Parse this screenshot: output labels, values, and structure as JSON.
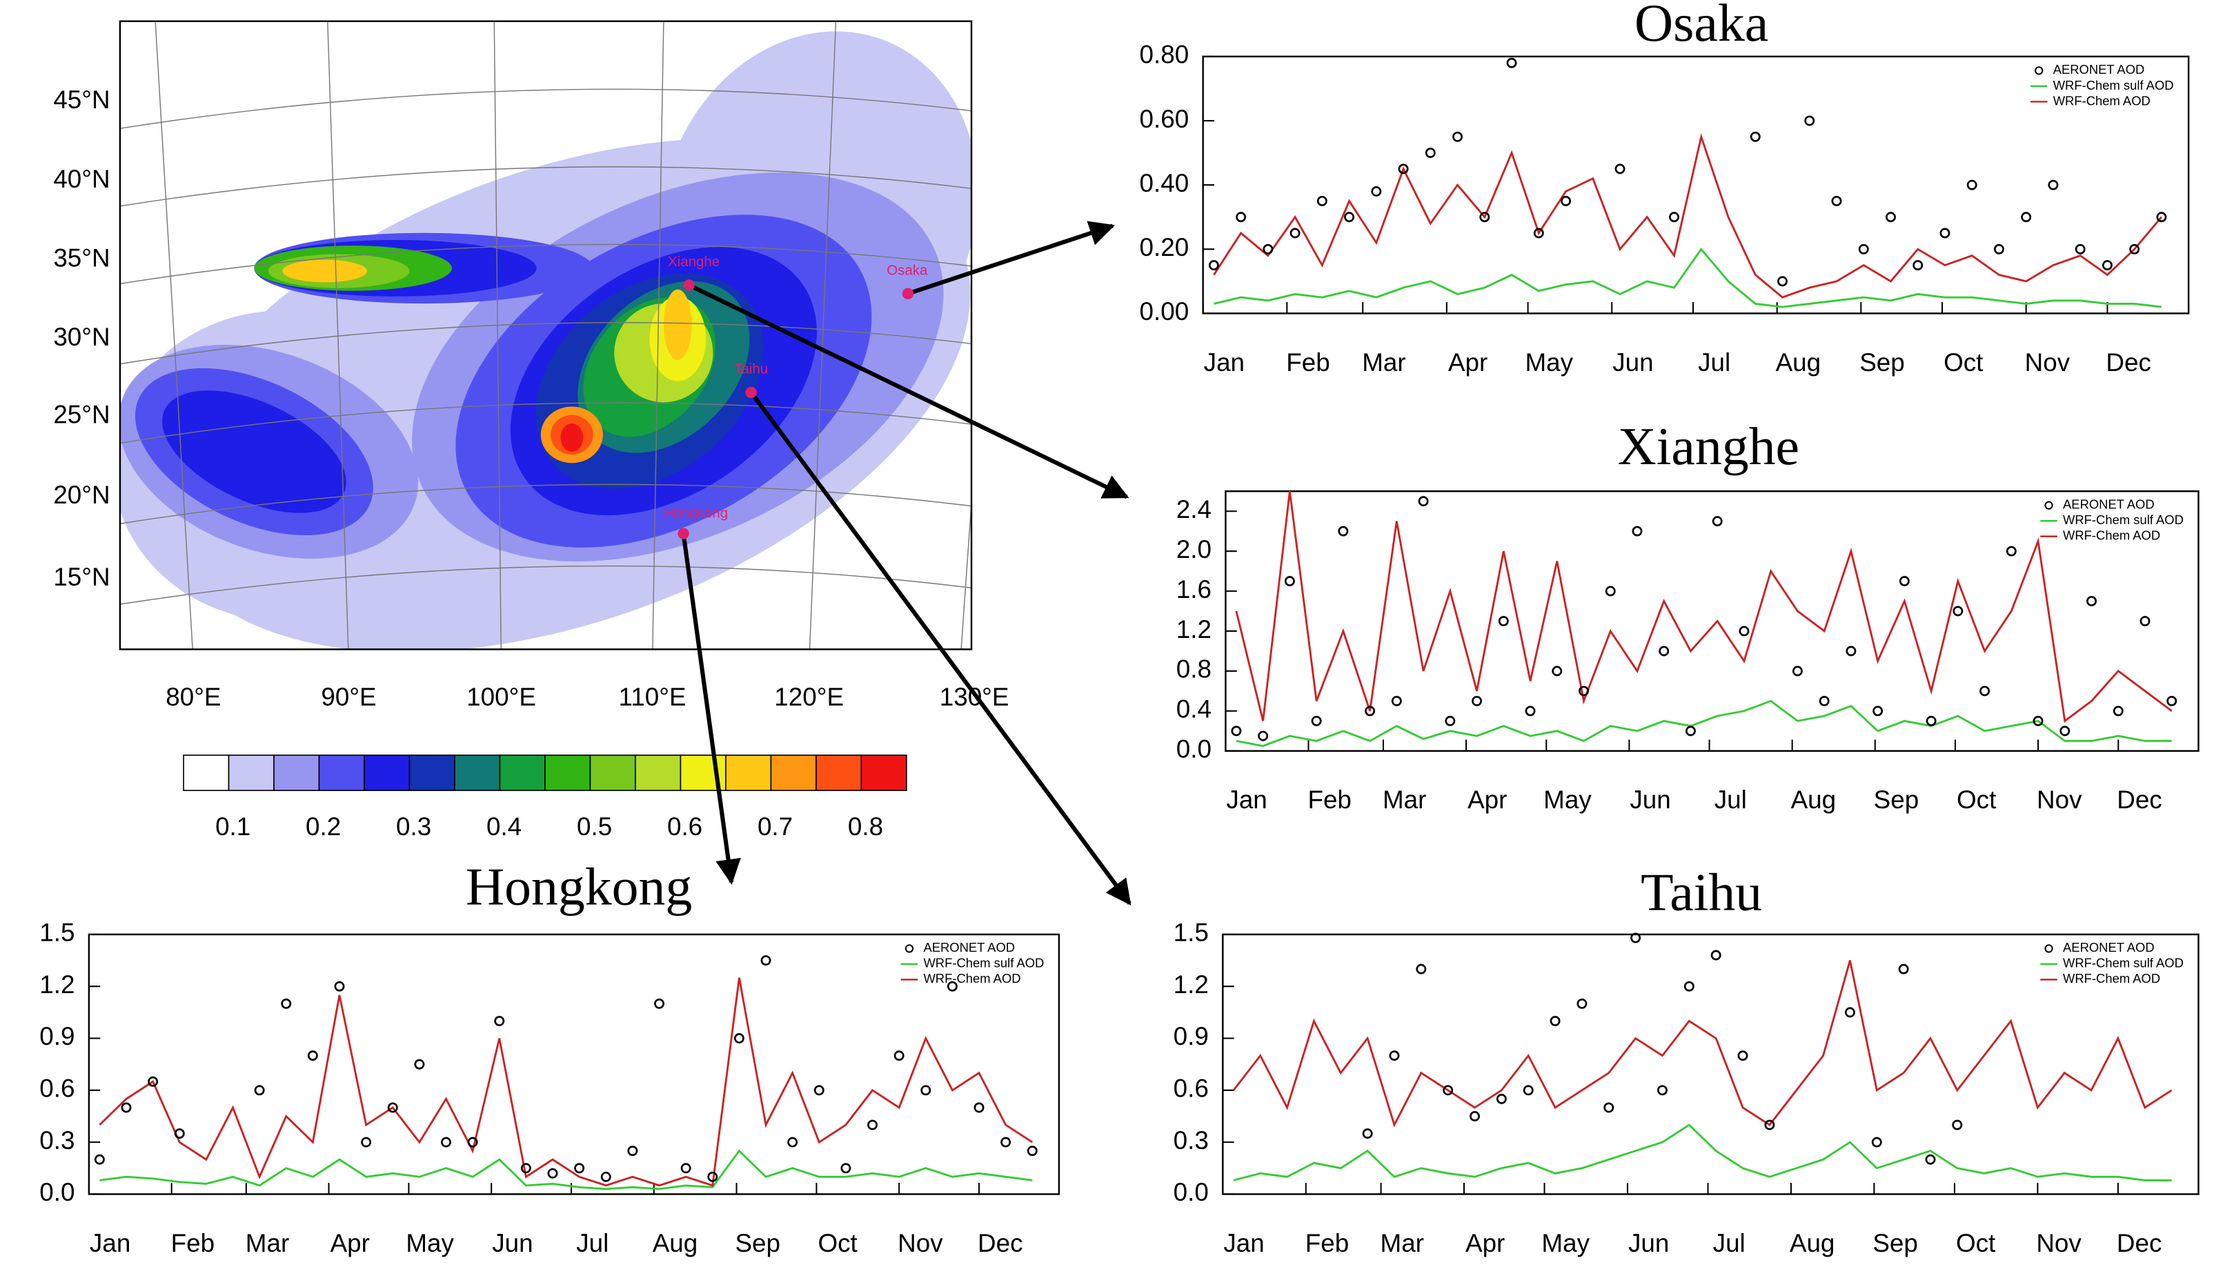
{
  "map": {
    "lat_labels": [
      "45°N",
      "40°N",
      "35°N",
      "30°N",
      "25°N",
      "20°N",
      "15°N"
    ],
    "lon_labels": [
      "80°E",
      "90°E",
      "100°E",
      "110°E",
      "120°E",
      "130°E"
    ],
    "cities": [
      "Osaka",
      "Xianghe",
      "Taihu",
      "Hongkong"
    ],
    "colorbar": {
      "ticks": [
        0.1,
        0.2,
        0.3,
        0.4,
        0.5,
        0.6,
        0.7,
        0.8
      ],
      "colors": [
        "#ffffff",
        "#c8c8f5",
        "#9696f0",
        "#5050f0",
        "#1e1ee6",
        "#1432b4",
        "#127878",
        "#14a03c",
        "#32b414",
        "#78c81e",
        "#b4dc28",
        "#f0f014",
        "#ffc814",
        "#ff9614",
        "#ff5014",
        "#f01414"
      ]
    }
  },
  "chart_data": [
    {
      "type": "line",
      "title": "Osaka",
      "x": [
        5,
        15,
        25,
        35,
        45,
        55,
        65,
        75,
        85,
        95,
        105,
        115,
        125,
        135,
        145,
        155,
        165,
        175,
        185,
        195,
        205,
        215,
        225,
        235,
        245,
        255,
        265,
        275,
        285,
        295,
        305,
        315,
        325,
        335,
        345,
        355
      ],
      "xlim": [
        1,
        365
      ],
      "xticks": [
        {
          "value": 1,
          "label": "Jan"
        },
        {
          "value": 32,
          "label": "Feb"
        },
        {
          "value": 60,
          "label": "Mar"
        },
        {
          "value": 91,
          "label": "Apr"
        },
        {
          "value": 121,
          "label": "May"
        },
        {
          "value": 152,
          "label": "Jun"
        },
        {
          "value": 182,
          "label": "Jul"
        },
        {
          "value": 213,
          "label": "Aug"
        },
        {
          "value": 244,
          "label": "Sep"
        },
        {
          "value": 274,
          "label": "Oct"
        },
        {
          "value": 305,
          "label": "Nov"
        },
        {
          "value": 335,
          "label": "Dec"
        }
      ],
      "ylim": [
        0,
        0.8
      ],
      "yticks": [
        {
          "value": 0,
          "label": "0.00"
        },
        {
          "value": 0.2,
          "label": "0.20"
        },
        {
          "value": 0.4,
          "label": "0.40"
        },
        {
          "value": 0.6,
          "label": "0.60"
        },
        {
          "value": 0.8,
          "label": "0.80"
        }
      ],
      "legend": "top-right",
      "series": [
        {
          "name": "AERONET AOD",
          "style": "markers",
          "color": "#000000",
          "values": [
            0.15,
            0.3,
            0.2,
            0.25,
            0.35,
            0.3,
            0.38,
            0.45,
            0.5,
            0.55,
            0.3,
            0.78,
            0.25,
            0.35,
            null,
            0.45,
            null,
            0.3,
            null,
            null,
            0.55,
            0.1,
            0.6,
            0.35,
            0.2,
            0.3,
            0.15,
            0.25,
            0.4,
            0.2,
            0.3,
            0.4,
            0.2,
            0.15,
            0.2,
            0.3
          ]
        },
        {
          "name": "WRF-Chem sulf AOD",
          "style": "line",
          "color": "#33cc33",
          "values": [
            0.03,
            0.05,
            0.04,
            0.06,
            0.05,
            0.07,
            0.05,
            0.08,
            0.1,
            0.06,
            0.08,
            0.12,
            0.07,
            0.09,
            0.1,
            0.06,
            0.1,
            0.08,
            0.2,
            0.1,
            0.03,
            0.02,
            0.03,
            0.04,
            0.05,
            0.04,
            0.06,
            0.05,
            0.05,
            0.04,
            0.03,
            0.04,
            0.04,
            0.03,
            0.03,
            0.02
          ]
        },
        {
          "name": "WRF-Chem AOD",
          "style": "line",
          "color": "#cc2222",
          "values": [
            0.12,
            0.25,
            0.18,
            0.3,
            0.15,
            0.35,
            0.22,
            0.45,
            0.28,
            0.4,
            0.3,
            0.5,
            0.25,
            0.38,
            0.42,
            0.2,
            0.3,
            0.18,
            0.55,
            0.3,
            0.12,
            0.05,
            0.08,
            0.1,
            0.15,
            0.1,
            0.2,
            0.15,
            0.18,
            0.12,
            0.1,
            0.15,
            0.18,
            0.12,
            0.2,
            0.3
          ]
        }
      ]
    },
    {
      "type": "line",
      "title": "Xianghe",
      "x": [
        5,
        15,
        25,
        35,
        45,
        55,
        65,
        75,
        85,
        95,
        105,
        115,
        125,
        135,
        145,
        155,
        165,
        175,
        185,
        195,
        205,
        215,
        225,
        235,
        245,
        255,
        265,
        275,
        285,
        295,
        305,
        315,
        325,
        335,
        345,
        355
      ],
      "xlim": [
        1,
        365
      ],
      "xticks": [
        {
          "value": 1,
          "label": "Jan"
        },
        {
          "value": 32,
          "label": "Feb"
        },
        {
          "value": 60,
          "label": "Mar"
        },
        {
          "value": 91,
          "label": "Apr"
        },
        {
          "value": 121,
          "label": "May"
        },
        {
          "value": 152,
          "label": "Jun"
        },
        {
          "value": 182,
          "label": "Jul"
        },
        {
          "value": 213,
          "label": "Aug"
        },
        {
          "value": 244,
          "label": "Sep"
        },
        {
          "value": 274,
          "label": "Oct"
        },
        {
          "value": 305,
          "label": "Nov"
        },
        {
          "value": 335,
          "label": "Dec"
        }
      ],
      "ylim": [
        0,
        2.6
      ],
      "yticks": [
        {
          "value": 0,
          "label": "0.0"
        },
        0.4,
        0.8,
        1.2,
        1.6,
        {
          "value": 2,
          "label": "2.0"
        },
        2.4
      ],
      "legend": "top-right",
      "series": [
        {
          "name": "AERONET AOD",
          "style": "markers",
          "color": "#000000",
          "values": [
            0.2,
            0.15,
            1.7,
            0.3,
            2.2,
            0.4,
            0.5,
            2.5,
            0.3,
            0.5,
            1.3,
            0.4,
            0.8,
            0.6,
            1.6,
            2.2,
            1.0,
            0.2,
            2.3,
            1.2,
            null,
            0.8,
            0.5,
            1.0,
            0.4,
            1.7,
            0.3,
            1.4,
            0.6,
            2.0,
            0.3,
            0.2,
            1.5,
            0.4,
            1.3,
            0.5
          ]
        },
        {
          "name": "WRF-Chem sulf AOD",
          "style": "line",
          "color": "#33cc33",
          "values": [
            0.1,
            0.05,
            0.15,
            0.1,
            0.2,
            0.1,
            0.25,
            0.12,
            0.2,
            0.15,
            0.25,
            0.15,
            0.2,
            0.1,
            0.25,
            0.2,
            0.3,
            0.25,
            0.35,
            0.4,
            0.5,
            0.3,
            0.35,
            0.45,
            0.2,
            0.3,
            0.25,
            0.35,
            0.2,
            0.25,
            0.3,
            0.1,
            0.1,
            0.15,
            0.1,
            0.1
          ]
        },
        {
          "name": "WRF-Chem AOD",
          "style": "line",
          "color": "#cc2222",
          "values": [
            1.4,
            0.3,
            2.6,
            0.5,
            1.2,
            0.4,
            2.3,
            0.8,
            1.6,
            0.6,
            2.0,
            0.7,
            1.9,
            0.5,
            1.2,
            0.8,
            1.5,
            1.0,
            1.3,
            0.9,
            1.8,
            1.4,
            1.2,
            2.0,
            0.9,
            1.5,
            0.6,
            1.7,
            1.0,
            1.4,
            2.1,
            0.3,
            0.5,
            0.8,
            0.6,
            0.4
          ]
        }
      ]
    },
    {
      "type": "line",
      "title": "Hongkong",
      "x": [
        5,
        15,
        25,
        35,
        45,
        55,
        65,
        75,
        85,
        95,
        105,
        115,
        125,
        135,
        145,
        155,
        165,
        175,
        185,
        195,
        205,
        215,
        225,
        235,
        245,
        255,
        265,
        275,
        285,
        295,
        305,
        315,
        325,
        335,
        345,
        355
      ],
      "xlim": [
        1,
        365
      ],
      "xticks": [
        {
          "value": 1,
          "label": "Jan"
        },
        {
          "value": 32,
          "label": "Feb"
        },
        {
          "value": 60,
          "label": "Mar"
        },
        {
          "value": 91,
          "label": "Apr"
        },
        {
          "value": 121,
          "label": "May"
        },
        {
          "value": 152,
          "label": "Jun"
        },
        {
          "value": 182,
          "label": "Jul"
        },
        {
          "value": 213,
          "label": "Aug"
        },
        {
          "value": 244,
          "label": "Sep"
        },
        {
          "value": 274,
          "label": "Oct"
        },
        {
          "value": 305,
          "label": "Nov"
        },
        {
          "value": 335,
          "label": "Dec"
        }
      ],
      "ylim": [
        0,
        1.5
      ],
      "yticks": [
        {
          "value": 0,
          "label": "0.0"
        },
        0.3,
        0.6,
        0.9,
        1.2,
        1.5
      ],
      "legend": "top-right",
      "series": [
        {
          "name": "AERONET AOD",
          "style": "markers",
          "color": "#000000",
          "values": [
            0.2,
            0.5,
            0.65,
            0.35,
            null,
            null,
            0.6,
            1.1,
            0.8,
            1.2,
            0.3,
            0.5,
            0.75,
            0.3,
            0.3,
            1.0,
            0.15,
            0.12,
            0.15,
            0.1,
            0.25,
            1.1,
            0.15,
            0.1,
            0.9,
            1.35,
            0.3,
            0.6,
            0.15,
            0.4,
            0.8,
            0.6,
            1.2,
            0.5,
            0.3,
            0.25
          ]
        },
        {
          "name": "WRF-Chem sulf AOD",
          "style": "line",
          "color": "#33cc33",
          "values": [
            0.08,
            0.1,
            0.09,
            0.07,
            0.06,
            0.1,
            0.05,
            0.15,
            0.1,
            0.2,
            0.1,
            0.12,
            0.1,
            0.15,
            0.1,
            0.2,
            0.05,
            0.06,
            0.04,
            0.03,
            0.04,
            0.03,
            0.05,
            0.04,
            0.25,
            0.1,
            0.15,
            0.1,
            0.1,
            0.12,
            0.1,
            0.15,
            0.1,
            0.12,
            0.1,
            0.08
          ]
        },
        {
          "name": "WRF-Chem AOD",
          "style": "line",
          "color": "#cc2222",
          "values": [
            0.4,
            0.55,
            0.65,
            0.3,
            0.2,
            0.5,
            0.1,
            0.45,
            0.3,
            1.15,
            0.4,
            0.5,
            0.3,
            0.55,
            0.25,
            0.9,
            0.1,
            0.2,
            0.1,
            0.05,
            0.1,
            0.05,
            0.1,
            0.05,
            1.25,
            0.4,
            0.7,
            0.3,
            0.4,
            0.6,
            0.5,
            0.9,
            0.6,
            0.7,
            0.4,
            0.3
          ]
        }
      ]
    },
    {
      "type": "line",
      "title": "Taihu",
      "x": [
        5,
        15,
        25,
        35,
        45,
        55,
        65,
        75,
        85,
        95,
        105,
        115,
        125,
        135,
        145,
        155,
        165,
        175,
        185,
        195,
        205,
        215,
        225,
        235,
        245,
        255,
        265,
        275,
        285,
        295,
        305,
        315,
        325,
        335,
        345,
        355
      ],
      "xlim": [
        1,
        365
      ],
      "xticks": [
        {
          "value": 1,
          "label": "Jan"
        },
        {
          "value": 32,
          "label": "Feb"
        },
        {
          "value": 60,
          "label": "Mar"
        },
        {
          "value": 91,
          "label": "Apr"
        },
        {
          "value": 121,
          "label": "May"
        },
        {
          "value": 152,
          "label": "Jun"
        },
        {
          "value": 182,
          "label": "Jul"
        },
        {
          "value": 213,
          "label": "Aug"
        },
        {
          "value": 244,
          "label": "Sep"
        },
        {
          "value": 274,
          "label": "Oct"
        },
        {
          "value": 305,
          "label": "Nov"
        },
        {
          "value": 335,
          "label": "Dec"
        }
      ],
      "ylim": [
        0,
        1.5
      ],
      "yticks": [
        {
          "value": 0,
          "label": "0.0"
        },
        0.3,
        0.6,
        0.9,
        1.2,
        1.5
      ],
      "legend": "top-right",
      "series": [
        {
          "name": "AERONET AOD",
          "style": "markers",
          "color": "#000000",
          "values": [
            null,
            null,
            null,
            null,
            null,
            0.35,
            0.8,
            1.3,
            0.6,
            0.45,
            0.55,
            0.6,
            1.0,
            1.1,
            0.5,
            1.48,
            0.6,
            1.2,
            1.38,
            0.8,
            0.4,
            null,
            null,
            1.05,
            0.3,
            1.3,
            0.2,
            0.4,
            null,
            null,
            null,
            null,
            null,
            null,
            null,
            null
          ]
        },
        {
          "name": "WRF-Chem sulf AOD",
          "style": "line",
          "color": "#33cc33",
          "values": [
            0.08,
            0.12,
            0.1,
            0.18,
            0.15,
            0.25,
            0.1,
            0.15,
            0.12,
            0.1,
            0.15,
            0.18,
            0.12,
            0.15,
            0.2,
            0.25,
            0.3,
            0.4,
            0.25,
            0.15,
            0.1,
            0.15,
            0.2,
            0.3,
            0.15,
            0.2,
            0.25,
            0.15,
            0.12,
            0.15,
            0.1,
            0.12,
            0.1,
            0.1,
            0.08,
            0.08
          ]
        },
        {
          "name": "WRF-Chem AOD",
          "style": "line",
          "color": "#cc2222",
          "values": [
            0.6,
            0.8,
            0.5,
            1.0,
            0.7,
            0.9,
            0.4,
            0.7,
            0.6,
            0.5,
            0.6,
            0.8,
            0.5,
            0.6,
            0.7,
            0.9,
            0.8,
            1.0,
            0.9,
            0.5,
            0.4,
            0.6,
            0.8,
            1.35,
            0.6,
            0.7,
            0.9,
            0.6,
            0.8,
            1.0,
            0.5,
            0.7,
            0.6,
            0.9,
            0.5,
            0.6
          ]
        }
      ]
    }
  ]
}
